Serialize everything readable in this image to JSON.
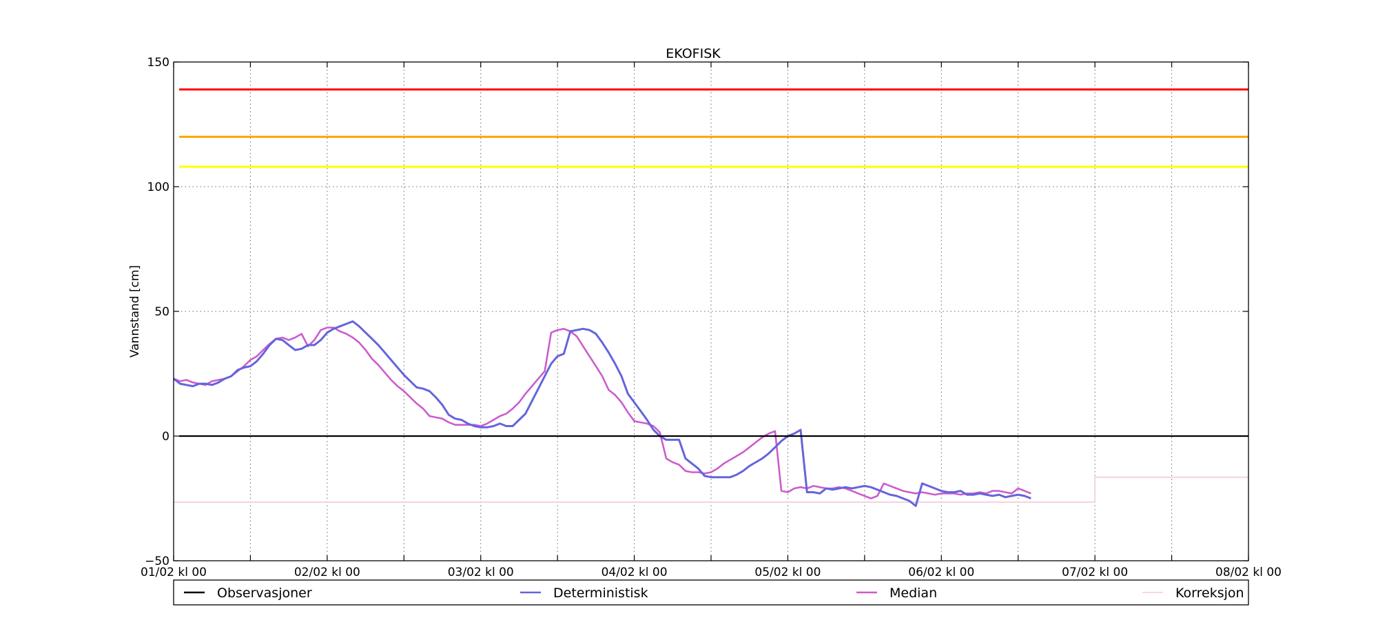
{
  "chart_data": {
    "type": "line",
    "title": "EKOFISK",
    "xlabel": "",
    "ylabel": "Vannstand [cm]",
    "ylim": [
      -50,
      150
    ],
    "yticks": [
      -50,
      0,
      50,
      100,
      150
    ],
    "xlim": [
      0,
      168
    ],
    "xticks": [
      {
        "h": 0,
        "label": "01/02 kl 00"
      },
      {
        "h": 24,
        "label": "02/02 kl 00"
      },
      {
        "h": 48,
        "label": "03/02 kl 00"
      },
      {
        "h": 72,
        "label": "04/02 kl 00"
      },
      {
        "h": 96,
        "label": "05/02 kl 00"
      },
      {
        "h": 120,
        "label": "06/02 kl 00"
      },
      {
        "h": 144,
        "label": "07/02 kl 00"
      },
      {
        "h": 168,
        "label": "08/02 kl 00"
      }
    ],
    "minor_grid_hours": [
      12,
      36,
      60,
      84,
      108,
      132,
      156
    ],
    "grid": true,
    "legend_position": "below",
    "thresholds": [
      {
        "value": 139,
        "color": "#ff0000"
      },
      {
        "value": 120,
        "color": "#ffa500"
      },
      {
        "value": 108,
        "color": "#ffff00"
      }
    ],
    "series": [
      {
        "name": "Observasjoner",
        "color": "#000000",
        "points": [
          [
            0,
            0
          ],
          [
            168,
            0
          ]
        ]
      },
      {
        "name": "Deterministisk",
        "color": "#6464dc",
        "points": [
          [
            0,
            23
          ],
          [
            1,
            21
          ],
          [
            2,
            20.5
          ],
          [
            3,
            20
          ],
          [
            4,
            21
          ],
          [
            5,
            21
          ],
          [
            6,
            20.5
          ],
          [
            7,
            21.5
          ],
          [
            8,
            23
          ],
          [
            9,
            24
          ],
          [
            10,
            26.5
          ],
          [
            11,
            27.5
          ],
          [
            12,
            28
          ],
          [
            13,
            30
          ],
          [
            14,
            33
          ],
          [
            15,
            36.5
          ],
          [
            16,
            39
          ],
          [
            17,
            38.5
          ],
          [
            18,
            36.5
          ],
          [
            19,
            34.5
          ],
          [
            20,
            35
          ],
          [
            21,
            36.5
          ],
          [
            22,
            36.5
          ],
          [
            23,
            38.5
          ],
          [
            24,
            41.5
          ],
          [
            25,
            43
          ],
          [
            26,
            44
          ],
          [
            27,
            45
          ],
          [
            28,
            46
          ],
          [
            29,
            44
          ],
          [
            30,
            41.5
          ],
          [
            31,
            39
          ],
          [
            32,
            36.5
          ],
          [
            33,
            33.5
          ],
          [
            34,
            30.5
          ],
          [
            35,
            27.5
          ],
          [
            36,
            24.5
          ],
          [
            37,
            22
          ],
          [
            38,
            19.5
          ],
          [
            39,
            19
          ],
          [
            40,
            18
          ],
          [
            41,
            15.5
          ],
          [
            42,
            12.5
          ],
          [
            43,
            8.5
          ],
          [
            44,
            7
          ],
          [
            45,
            6.5
          ],
          [
            46,
            5
          ],
          [
            47,
            4
          ],
          [
            48,
            3.5
          ],
          [
            49,
            3.5
          ],
          [
            50,
            4
          ],
          [
            51,
            5
          ],
          [
            52,
            4
          ],
          [
            53,
            4
          ],
          [
            54,
            6.5
          ],
          [
            55,
            9
          ],
          [
            56,
            14
          ],
          [
            57,
            19
          ],
          [
            58,
            24
          ],
          [
            59,
            29
          ],
          [
            60,
            32
          ],
          [
            61,
            33
          ],
          [
            62,
            42
          ],
          [
            63,
            42.5
          ],
          [
            64,
            43
          ],
          [
            65,
            42.5
          ],
          [
            66,
            41
          ],
          [
            67,
            37.5
          ],
          [
            68,
            33.5
          ],
          [
            69,
            29
          ],
          [
            70,
            24
          ],
          [
            71,
            17
          ],
          [
            72,
            13.5
          ],
          [
            73,
            10
          ],
          [
            74,
            6.5
          ],
          [
            75,
            2.5
          ],
          [
            76,
            0
          ],
          [
            77,
            -1.5
          ],
          [
            78,
            -1.5
          ],
          [
            79,
            -1.5
          ],
          [
            80,
            -9
          ],
          [
            81,
            -11
          ],
          [
            82,
            -13
          ],
          [
            83,
            -16
          ],
          [
            84,
            -16.5
          ],
          [
            85,
            -16.5
          ],
          [
            86,
            -16.5
          ],
          [
            87,
            -16.5
          ],
          [
            88,
            -15.5
          ],
          [
            89,
            -14
          ],
          [
            90,
            -12
          ],
          [
            91,
            -10.5
          ],
          [
            92,
            -9
          ],
          [
            93,
            -7
          ],
          [
            94,
            -4.5
          ],
          [
            95,
            -2
          ],
          [
            96,
            0
          ],
          [
            97,
            1
          ],
          [
            98,
            2.5
          ],
          [
            99,
            -22.5
          ],
          [
            100,
            -22.5
          ],
          [
            101,
            -23
          ],
          [
            102,
            -21
          ],
          [
            103,
            -21.5
          ],
          [
            104,
            -21
          ],
          [
            105,
            -20.5
          ],
          [
            106,
            -21
          ],
          [
            107,
            -20.5
          ],
          [
            108,
            -20
          ],
          [
            109,
            -20.5
          ],
          [
            110,
            -21.5
          ],
          [
            111,
            -22.5
          ],
          [
            112,
            -23.5
          ],
          [
            113,
            -24
          ],
          [
            114,
            -25
          ],
          [
            115,
            -26
          ],
          [
            116,
            -28
          ],
          [
            117,
            -19
          ],
          [
            118,
            -20
          ],
          [
            119,
            -21
          ],
          [
            120,
            -22
          ],
          [
            121,
            -22.5
          ],
          [
            122,
            -22.5
          ],
          [
            123,
            -22
          ],
          [
            124,
            -23.5
          ],
          [
            125,
            -23.5
          ],
          [
            126,
            -23
          ],
          [
            127,
            -23.5
          ],
          [
            128,
            -24
          ],
          [
            129,
            -23.5
          ],
          [
            130,
            -24.5
          ],
          [
            131,
            -24
          ],
          [
            132,
            -23.5
          ],
          [
            133,
            -24
          ],
          [
            134,
            -25
          ]
        ]
      },
      {
        "name": "Median",
        "color": "#cc5ccc",
        "points": [
          [
            0,
            23
          ],
          [
            1,
            22
          ],
          [
            2,
            22.5
          ],
          [
            3,
            21.5
          ],
          [
            4,
            21
          ],
          [
            5,
            20.5
          ],
          [
            6,
            22
          ],
          [
            7,
            22.5
          ],
          [
            8,
            23
          ],
          [
            9,
            24
          ],
          [
            10,
            26
          ],
          [
            11,
            28
          ],
          [
            12,
            30.5
          ],
          [
            13,
            32
          ],
          [
            14,
            34.5
          ],
          [
            15,
            37
          ],
          [
            16,
            39
          ],
          [
            17,
            39.5
          ],
          [
            18,
            38.5
          ],
          [
            19,
            39.5
          ],
          [
            20,
            41
          ],
          [
            21,
            36
          ],
          [
            22,
            38.5
          ],
          [
            23,
            42.5
          ],
          [
            24,
            43.5
          ],
          [
            25,
            43.5
          ],
          [
            26,
            42
          ],
          [
            27,
            41
          ],
          [
            28,
            39.5
          ],
          [
            29,
            37.5
          ],
          [
            30,
            34.5
          ],
          [
            31,
            31
          ],
          [
            32,
            28.5
          ],
          [
            33,
            25.5
          ],
          [
            34,
            22.5
          ],
          [
            35,
            20
          ],
          [
            36,
            18
          ],
          [
            37,
            15.5
          ],
          [
            38,
            13
          ],
          [
            39,
            11
          ],
          [
            40,
            8
          ],
          [
            41,
            7.5
          ],
          [
            42,
            7
          ],
          [
            43,
            5.5
          ],
          [
            44,
            4.5
          ],
          [
            45,
            4.5
          ],
          [
            46,
            4.5
          ],
          [
            47,
            4.5
          ],
          [
            48,
            4
          ],
          [
            49,
            5
          ],
          [
            50,
            6.5
          ],
          [
            51,
            8
          ],
          [
            52,
            9
          ],
          [
            53,
            11
          ],
          [
            54,
            13.5
          ],
          [
            55,
            17
          ],
          [
            56,
            20
          ],
          [
            57,
            23
          ],
          [
            58,
            26
          ],
          [
            59,
            41.5
          ],
          [
            60,
            42.5
          ],
          [
            61,
            43
          ],
          [
            62,
            42
          ],
          [
            63,
            40
          ],
          [
            64,
            36
          ],
          [
            65,
            32
          ],
          [
            66,
            28
          ],
          [
            67,
            24
          ],
          [
            68,
            18.5
          ],
          [
            69,
            16.5
          ],
          [
            70,
            13.5
          ],
          [
            71,
            9.5
          ],
          [
            72,
            6
          ],
          [
            73,
            5.5
          ],
          [
            74,
            5
          ],
          [
            75,
            4
          ],
          [
            76,
            1.5
          ],
          [
            77,
            -9
          ],
          [
            78,
            -10.5
          ],
          [
            79,
            -11.5
          ],
          [
            80,
            -14
          ],
          [
            81,
            -14.5
          ],
          [
            82,
            -14.5
          ],
          [
            83,
            -15
          ],
          [
            84,
            -14.5
          ],
          [
            85,
            -13
          ],
          [
            86,
            -11
          ],
          [
            87,
            -9.5
          ],
          [
            88,
            -8
          ],
          [
            89,
            -6.5
          ],
          [
            90,
            -4.5
          ],
          [
            91,
            -2.5
          ],
          [
            92,
            -0.5
          ],
          [
            93,
            1
          ],
          [
            94,
            2
          ],
          [
            95,
            -22
          ],
          [
            96,
            -22.5
          ],
          [
            97,
            -21
          ],
          [
            98,
            -20.5
          ],
          [
            99,
            -21
          ],
          [
            100,
            -20
          ],
          [
            101,
            -20.5
          ],
          [
            102,
            -21
          ],
          [
            103,
            -21
          ],
          [
            104,
            -20.5
          ],
          [
            105,
            -21
          ],
          [
            106,
            -22
          ],
          [
            107,
            -23
          ],
          [
            108,
            -24
          ],
          [
            109,
            -25
          ],
          [
            110,
            -24
          ],
          [
            111,
            -19
          ],
          [
            112,
            -20
          ],
          [
            113,
            -21
          ],
          [
            114,
            -22
          ],
          [
            115,
            -22.5
          ],
          [
            116,
            -23
          ],
          [
            117,
            -22.5
          ],
          [
            118,
            -23
          ],
          [
            119,
            -23.5
          ],
          [
            120,
            -23
          ],
          [
            121,
            -23
          ],
          [
            122,
            -23
          ],
          [
            123,
            -23.5
          ],
          [
            124,
            -23
          ],
          [
            125,
            -23
          ],
          [
            126,
            -22.5
          ],
          [
            127,
            -23
          ],
          [
            128,
            -22
          ],
          [
            129,
            -22
          ],
          [
            130,
            -22.5
          ],
          [
            131,
            -23
          ],
          [
            132,
            -21
          ],
          [
            133,
            -22
          ],
          [
            134,
            -23
          ]
        ]
      },
      {
        "name": "Korreksjon",
        "color": "#f5c8dc",
        "points": [
          [
            0,
            -26.5
          ],
          [
            24,
            -26.5
          ],
          [
            48,
            -26.5
          ],
          [
            72,
            -26.5
          ],
          [
            144,
            -26.5
          ],
          [
            144,
            -16.5
          ],
          [
            168,
            -16.5
          ]
        ]
      }
    ]
  }
}
